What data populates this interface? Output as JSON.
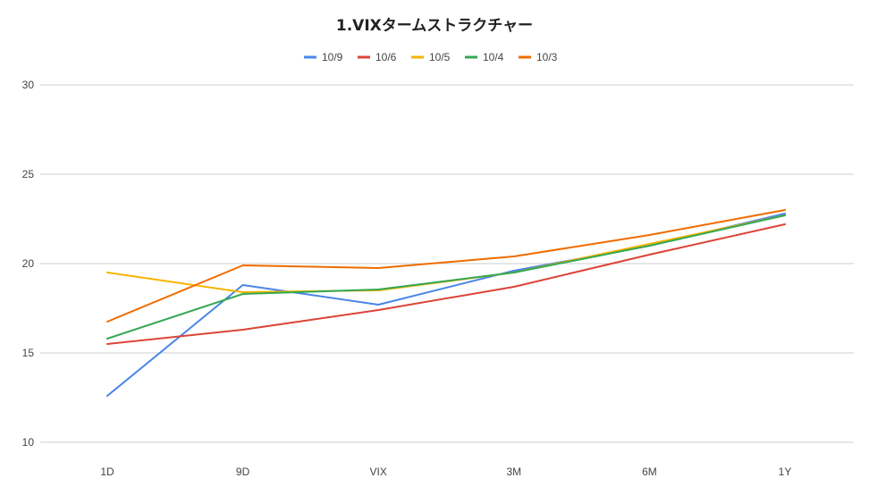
{
  "chart_data": {
    "type": "line",
    "title": "1.VIXタームストラクチャー",
    "categories": [
      "1D",
      "9D",
      "VIX",
      "3M",
      "6M",
      "1Y"
    ],
    "ylim": [
      10,
      30
    ],
    "yticks": [
      "10",
      "15",
      "20",
      "25",
      "30"
    ],
    "grid": true,
    "legend_position": "top",
    "series": [
      {
        "name": "10/9",
        "color": "#4a86e8",
        "values": [
          12.6,
          18.8,
          17.7,
          19.6,
          21.0,
          22.8
        ]
      },
      {
        "name": "10/6",
        "color": "#db4437",
        "values": [
          15.5,
          16.3,
          17.4,
          18.7,
          20.5,
          22.2
        ]
      },
      {
        "name": "10/5",
        "color": "#f4b400",
        "values": [
          19.5,
          18.4,
          18.5,
          19.5,
          21.1,
          22.7
        ]
      },
      {
        "name": "10/4",
        "color": "#34a853",
        "values": [
          15.8,
          18.3,
          18.55,
          19.5,
          21.0,
          22.7
        ]
      },
      {
        "name": "10/3",
        "color": "#ef6c00",
        "values": [
          16.75,
          19.9,
          19.75,
          20.4,
          21.6,
          23.0
        ]
      }
    ]
  }
}
